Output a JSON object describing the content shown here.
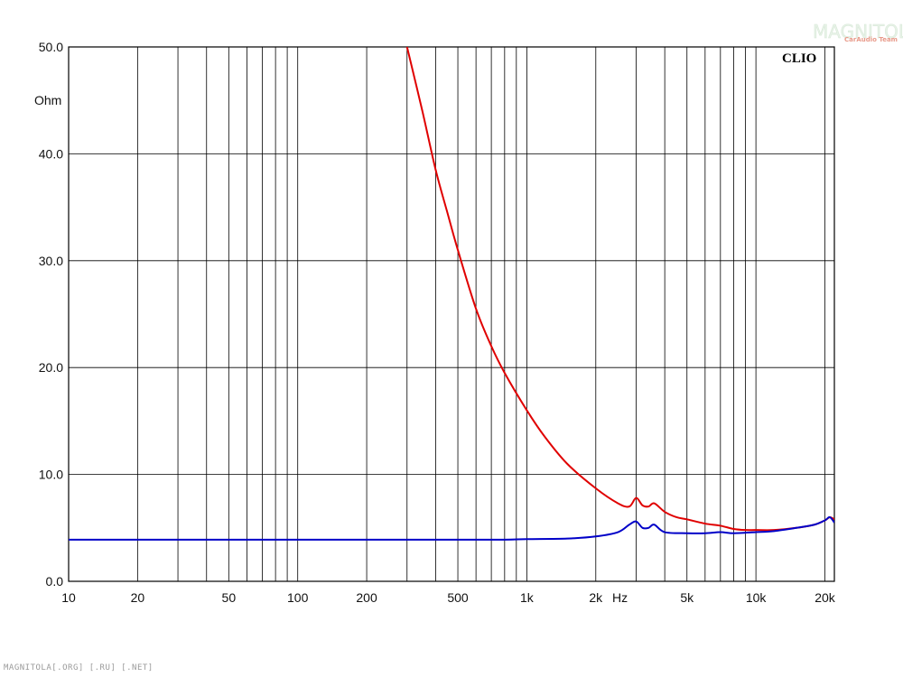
{
  "chart_data": {
    "type": "line",
    "x_scale": "log",
    "grid": true,
    "xlim": [
      10,
      22000
    ],
    "ylim": [
      0,
      50
    ],
    "xlabel": "Hz",
    "ylabel": "Ohm",
    "x_ticks": [
      {
        "value": 10,
        "label": "10"
      },
      {
        "value": 20,
        "label": "20"
      },
      {
        "value": 50,
        "label": "50"
      },
      {
        "value": 100,
        "label": "100"
      },
      {
        "value": 200,
        "label": "200"
      },
      {
        "value": 500,
        "label": "500"
      },
      {
        "value": 1000,
        "label": "1k"
      },
      {
        "value": 2000,
        "label": "2k"
      },
      {
        "value": 5000,
        "label": "5k"
      },
      {
        "value": 10000,
        "label": "10k"
      },
      {
        "value": 20000,
        "label": "20k"
      }
    ],
    "y_ticks": [
      {
        "value": 0,
        "label": "0.0"
      },
      {
        "value": 10,
        "label": "10.0"
      },
      {
        "value": 20,
        "label": "20.0"
      },
      {
        "value": 30,
        "label": "30.0"
      },
      {
        "value": 40,
        "label": "40.0"
      },
      {
        "value": 50,
        "label": "50.0"
      }
    ],
    "series": [
      {
        "color": "#e00000",
        "points": [
          [
            300,
            50.0
          ],
          [
            350,
            44.0
          ],
          [
            400,
            38.5
          ],
          [
            450,
            34.5
          ],
          [
            500,
            31.0
          ],
          [
            600,
            25.5
          ],
          [
            700,
            22.0
          ],
          [
            800,
            19.5
          ],
          [
            1000,
            16.0
          ],
          [
            1200,
            13.5
          ],
          [
            1500,
            11.0
          ],
          [
            2000,
            8.7
          ],
          [
            2500,
            7.3
          ],
          [
            2800,
            7.0
          ],
          [
            3000,
            7.8
          ],
          [
            3200,
            7.1
          ],
          [
            3400,
            7.0
          ],
          [
            3600,
            7.3
          ],
          [
            4000,
            6.5
          ],
          [
            4500,
            6.0
          ],
          [
            5000,
            5.8
          ],
          [
            6000,
            5.4
          ],
          [
            7000,
            5.2
          ],
          [
            8000,
            4.9
          ],
          [
            9000,
            4.8
          ],
          [
            10000,
            4.8
          ],
          [
            12000,
            4.8
          ],
          [
            15000,
            5.0
          ],
          [
            18000,
            5.3
          ],
          [
            20000,
            5.7
          ],
          [
            21000,
            6.0
          ],
          [
            22000,
            5.8
          ]
        ]
      },
      {
        "color": "#0000c8",
        "points": [
          [
            10,
            3.9
          ],
          [
            50,
            3.9
          ],
          [
            100,
            3.9
          ],
          [
            200,
            3.9
          ],
          [
            500,
            3.9
          ],
          [
            800,
            3.9
          ],
          [
            1000,
            3.95
          ],
          [
            1500,
            4.0
          ],
          [
            2000,
            4.2
          ],
          [
            2500,
            4.6
          ],
          [
            2800,
            5.3
          ],
          [
            3000,
            5.6
          ],
          [
            3200,
            5.0
          ],
          [
            3400,
            5.0
          ],
          [
            3600,
            5.3
          ],
          [
            4000,
            4.6
          ],
          [
            5000,
            4.5
          ],
          [
            6000,
            4.5
          ],
          [
            7000,
            4.6
          ],
          [
            8000,
            4.5
          ],
          [
            10000,
            4.6
          ],
          [
            12000,
            4.7
          ],
          [
            15000,
            5.0
          ],
          [
            18000,
            5.3
          ],
          [
            20000,
            5.7
          ],
          [
            21000,
            6.0
          ],
          [
            22000,
            5.5
          ]
        ]
      }
    ],
    "annotations": [
      "CLIO"
    ]
  },
  "watermark": {
    "logo_text": "MAGNITOLA",
    "logo_subtext": "CarAudio Team",
    "footer_text": "MAGNITOLA[.ORG] [.RU] [.NET]"
  }
}
